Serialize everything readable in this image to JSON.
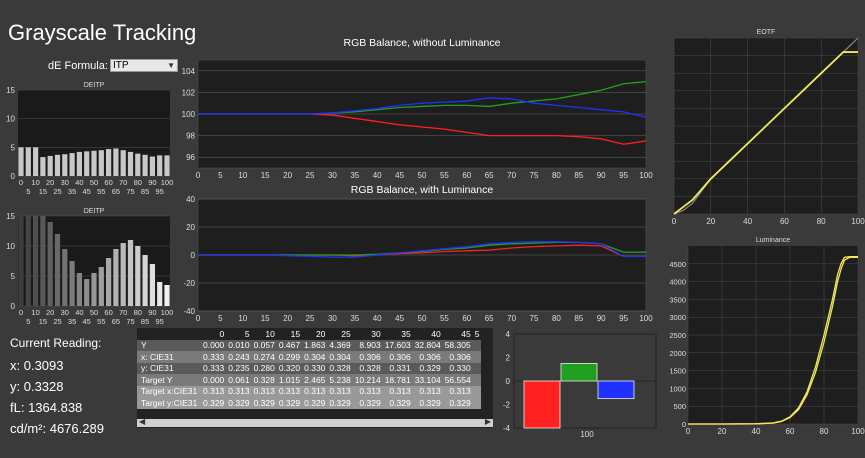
{
  "page": {
    "title": "Grayscale Tracking"
  },
  "de_formula": {
    "label": "dE Formula:",
    "value": "ITP"
  },
  "current_reading": {
    "heading": "Current Reading:",
    "x": "x: 0.3093",
    "y": "y: 0.3328",
    "fl": "fL: 1364.838",
    "cdm2": "cd/m²: 4676.289"
  },
  "colors": {
    "red": "#ff2020",
    "green": "#20a020",
    "blue": "#2030ff",
    "yellow": "#f2e85a"
  },
  "table": {
    "corner": "",
    "columns": [
      "0",
      "5",
      "10",
      "15",
      "20",
      "25",
      "30",
      "35",
      "40",
      "45",
      "5"
    ],
    "rows": [
      {
        "label": "Y",
        "values": [
          "0.000",
          "0.010",
          "0.057",
          "0.467",
          "1.863",
          "4.369",
          "8.903",
          "17.603",
          "32.804",
          "58.305",
          ""
        ]
      },
      {
        "label": "x: CIE31",
        "values": [
          "0.333",
          "0.243",
          "0.274",
          "0.299",
          "0.304",
          "0.304",
          "0.306",
          "0.306",
          "0.306",
          "0.306",
          ""
        ]
      },
      {
        "label": "y: CIE31",
        "values": [
          "0.333",
          "0.235",
          "0.280",
          "0.320",
          "0.330",
          "0.328",
          "0.328",
          "0.331",
          "0.329",
          "0.330",
          ""
        ]
      },
      {
        "label": "Target Y",
        "values": [
          "0.000",
          "0.061",
          "0.328",
          "1.015",
          "2.465",
          "5.238",
          "10.214",
          "18.781",
          "33.104",
          "56.554",
          ""
        ]
      },
      {
        "label": "Target x:CIE31",
        "values": [
          "0.313",
          "0.313",
          "0.313",
          "0.313",
          "0.313",
          "0.313",
          "0.313",
          "0.313",
          "0.313",
          "0.313",
          ""
        ]
      },
      {
        "label": "Target y:CIE31",
        "values": [
          "0.329",
          "0.329",
          "0.329",
          "0.329",
          "0.329",
          "0.329",
          "0.329",
          "0.329",
          "0.329",
          "0.329",
          ""
        ]
      }
    ]
  },
  "chart_data": [
    {
      "id": "deitp1",
      "type": "bar",
      "title": "DEITP",
      "ylim": [
        0,
        15
      ],
      "yticks": [
        0,
        5,
        10,
        15
      ],
      "xticks_top": [
        "0",
        "10",
        "20",
        "30",
        "40",
        "50",
        "60",
        "70",
        "80",
        "90",
        "100"
      ],
      "xticks_bottom": [
        "5",
        "15",
        "25",
        "35",
        "45",
        "55",
        "65",
        "75",
        "85",
        "95"
      ],
      "x": [
        0,
        5,
        10,
        15,
        20,
        25,
        30,
        35,
        40,
        45,
        50,
        55,
        60,
        65,
        70,
        75,
        80,
        85,
        90,
        95,
        100
      ],
      "values": [
        5.0,
        5.0,
        5.0,
        3.3,
        3.5,
        3.7,
        3.8,
        4.0,
        4.2,
        4.3,
        4.4,
        4.5,
        4.7,
        4.8,
        4.5,
        4.2,
        3.9,
        3.7,
        3.4,
        3.6,
        3.6
      ]
    },
    {
      "id": "deitp2",
      "type": "bar",
      "title": "DEITP",
      "ylim": [
        0,
        15
      ],
      "yticks": [
        0,
        5,
        10,
        15
      ],
      "xticks_top": [
        "0",
        "10",
        "20",
        "30",
        "40",
        "50",
        "60",
        "70",
        "80",
        "90",
        "100"
      ],
      "xticks_bottom": [
        "5",
        "15",
        "25",
        "35",
        "45",
        "55",
        "65",
        "75",
        "85",
        "95"
      ],
      "x": [
        0,
        5,
        10,
        15,
        20,
        25,
        30,
        35,
        40,
        45,
        50,
        55,
        60,
        65,
        70,
        75,
        80,
        85,
        90,
        95,
        100
      ],
      "values": [
        15,
        15,
        15,
        15,
        14,
        12,
        9.5,
        7.5,
        5.5,
        4.5,
        5.5,
        6.5,
        8,
        9.5,
        10.5,
        11,
        10,
        8.5,
        7,
        4,
        3.5
      ]
    },
    {
      "id": "rgb1",
      "type": "line",
      "title": "RGB Balance, without Luminance",
      "ylim": [
        95,
        105
      ],
      "yticks": [
        96,
        98,
        100,
        102,
        104
      ],
      "x": [
        0,
        5,
        10,
        15,
        20,
        25,
        30,
        35,
        40,
        45,
        50,
        55,
        60,
        65,
        70,
        75,
        80,
        85,
        90,
        95,
        100
      ],
      "xticks": [
        "0",
        "5",
        "10",
        "15",
        "20",
        "25",
        "30",
        "35",
        "40",
        "45",
        "50",
        "55",
        "60",
        "65",
        "70",
        "75",
        "80",
        "85",
        "90",
        "95",
        "100"
      ],
      "series": [
        {
          "color": "red",
          "values": [
            100,
            100,
            100,
            100,
            100,
            100,
            99.9,
            99.6,
            99.3,
            99.0,
            98.8,
            98.6,
            98.3,
            98.0,
            98.0,
            98.0,
            98.0,
            97.9,
            97.7,
            97.2,
            97.5
          ]
        },
        {
          "color": "green",
          "values": [
            100,
            100,
            100,
            100,
            100,
            100,
            100.1,
            100.2,
            100.4,
            100.6,
            100.7,
            100.8,
            100.8,
            100.7,
            101.0,
            101.2,
            101.4,
            101.8,
            102.2,
            102.8,
            103.0
          ]
        },
        {
          "color": "blue",
          "values": [
            100,
            100,
            100,
            100,
            100,
            100,
            100.1,
            100.3,
            100.5,
            100.8,
            101.0,
            101.1,
            101.2,
            101.5,
            101.4,
            101.0,
            100.8,
            100.6,
            100.4,
            100.2,
            99.7
          ]
        }
      ]
    },
    {
      "id": "rgb2",
      "type": "line",
      "title": "RGB Balance, with Luminance",
      "ylim": [
        -40,
        40
      ],
      "yticks": [
        -40,
        -20,
        0,
        20,
        40
      ],
      "x": [
        0,
        5,
        10,
        15,
        20,
        25,
        30,
        35,
        40,
        45,
        50,
        55,
        60,
        65,
        70,
        75,
        80,
        85,
        90,
        95,
        100
      ],
      "xticks": [
        "0",
        "5",
        "10",
        "15",
        "20",
        "25",
        "30",
        "35",
        "40",
        "45",
        "50",
        "55",
        "60",
        "65",
        "70",
        "75",
        "80",
        "85",
        "90",
        "95",
        "100"
      ],
      "series": [
        {
          "color": "red",
          "values": [
            0,
            0,
            0,
            0,
            0,
            0,
            0,
            -0.5,
            0,
            1,
            1.5,
            2.5,
            3,
            3.5,
            5,
            6,
            6.5,
            7,
            6.5,
            -1,
            -1
          ]
        },
        {
          "color": "green",
          "values": [
            0,
            0,
            0,
            0,
            0,
            0,
            0,
            0,
            0.5,
            1.5,
            2.5,
            4,
            5,
            7,
            8,
            8.5,
            9,
            9,
            8,
            2,
            2
          ]
        },
        {
          "color": "blue",
          "values": [
            0,
            0,
            0,
            0,
            -0.5,
            -1,
            -1.5,
            -1.5,
            0,
            1.5,
            3,
            4.5,
            6,
            8,
            9,
            9.5,
            9.5,
            9,
            8,
            -1,
            -1
          ]
        }
      ]
    },
    {
      "id": "eotf",
      "type": "line",
      "title": "EOTF",
      "xlim": [
        0,
        100
      ],
      "ylim": [
        0,
        1
      ],
      "xticks": [
        "0",
        "20",
        "40",
        "60",
        "80",
        "100"
      ],
      "yticks": [],
      "series": [
        {
          "color": "yellow",
          "x": [
            0,
            5,
            10,
            15,
            20,
            30,
            40,
            50,
            60,
            70,
            80,
            90,
            92,
            95,
            100
          ],
          "values": [
            0,
            0.04,
            0.08,
            0.14,
            0.2,
            0.3,
            0.4,
            0.5,
            0.6,
            0.7,
            0.8,
            0.9,
            0.92,
            0.92,
            0.92
          ]
        },
        {
          "color": "gray",
          "x": [
            0,
            5,
            10,
            15,
            20,
            30,
            40,
            50,
            60,
            70,
            80,
            90,
            95,
            100
          ],
          "values": [
            0,
            0.02,
            0.06,
            0.13,
            0.2,
            0.3,
            0.4,
            0.5,
            0.6,
            0.7,
            0.8,
            0.9,
            0.95,
            1.0
          ]
        }
      ]
    },
    {
      "id": "lum",
      "type": "line",
      "title": "Luminance",
      "xlim": [
        0,
        100
      ],
      "ylim": [
        0,
        5000
      ],
      "xticks": [
        "0",
        "20",
        "40",
        "60",
        "80",
        "100"
      ],
      "yticks": [
        "0",
        "500",
        "1000",
        "1500",
        "2000",
        "2500",
        "3000",
        "3500",
        "4000",
        "4500"
      ],
      "series": [
        {
          "color": "yellow",
          "x": [
            0,
            20,
            40,
            50,
            55,
            60,
            65,
            70,
            75,
            80,
            85,
            88,
            90,
            92,
            95,
            100
          ],
          "values": [
            0,
            0,
            5,
            30,
            80,
            200,
            450,
            900,
            1600,
            2500,
            3500,
            4200,
            4500,
            4680,
            4700,
            4700
          ]
        },
        {
          "color": "yellow",
          "x": [
            0,
            20,
            40,
            50,
            55,
            60,
            65,
            70,
            75,
            80,
            85,
            88,
            90,
            92,
            95,
            100
          ],
          "values": [
            0,
            0,
            5,
            25,
            70,
            180,
            400,
            820,
            1450,
            2300,
            3300,
            4000,
            4350,
            4600,
            4680,
            4680
          ]
        }
      ]
    },
    {
      "id": "rgbbars",
      "type": "bar",
      "title": "",
      "ylim": [
        -4,
        4
      ],
      "yticks": [
        -4,
        -2,
        0,
        2,
        4
      ],
      "categories": [
        "100"
      ],
      "series": [
        {
          "color": "red",
          "value": -4.0
        },
        {
          "color": "green",
          "value": 1.5
        },
        {
          "color": "blue",
          "value": -1.5
        }
      ]
    }
  ]
}
